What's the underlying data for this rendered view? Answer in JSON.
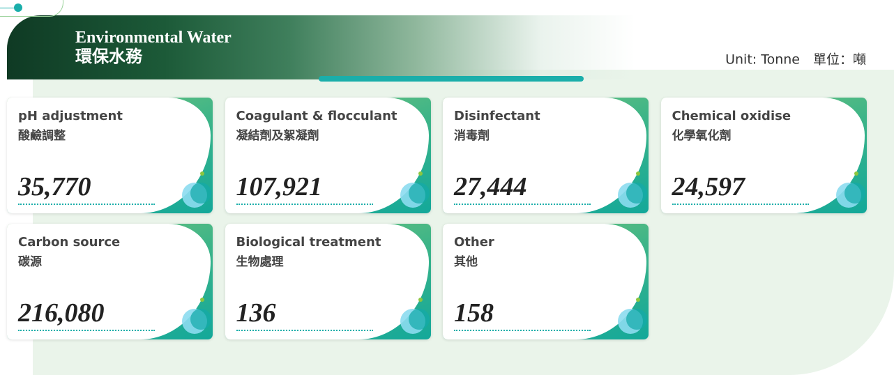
{
  "header": {
    "title_en": "Environmental Water",
    "title_zh": "環保水務",
    "unit": "Unit: Tonne　單位：噸"
  },
  "cards": [
    {
      "label_en": "pH adjustment",
      "label_zh": "酸鹼調整",
      "value": "35,770"
    },
    {
      "label_en": "Coagulant & flocculant",
      "label_zh": "凝結劑及絮凝劑",
      "value": "107,921"
    },
    {
      "label_en": "Disinfectant",
      "label_zh": "消毒劑",
      "value": "27,444"
    },
    {
      "label_en": "Chemical oxidise",
      "label_zh": "化學氧化劑",
      "value": "24,597"
    },
    {
      "label_en": "Carbon source",
      "label_zh": "碳源",
      "value": "216,080"
    },
    {
      "label_en": "Biological treatment",
      "label_zh": "生物處理",
      "value": "136"
    },
    {
      "label_en": "Other",
      "label_zh": "其他",
      "value": "158"
    }
  ]
}
